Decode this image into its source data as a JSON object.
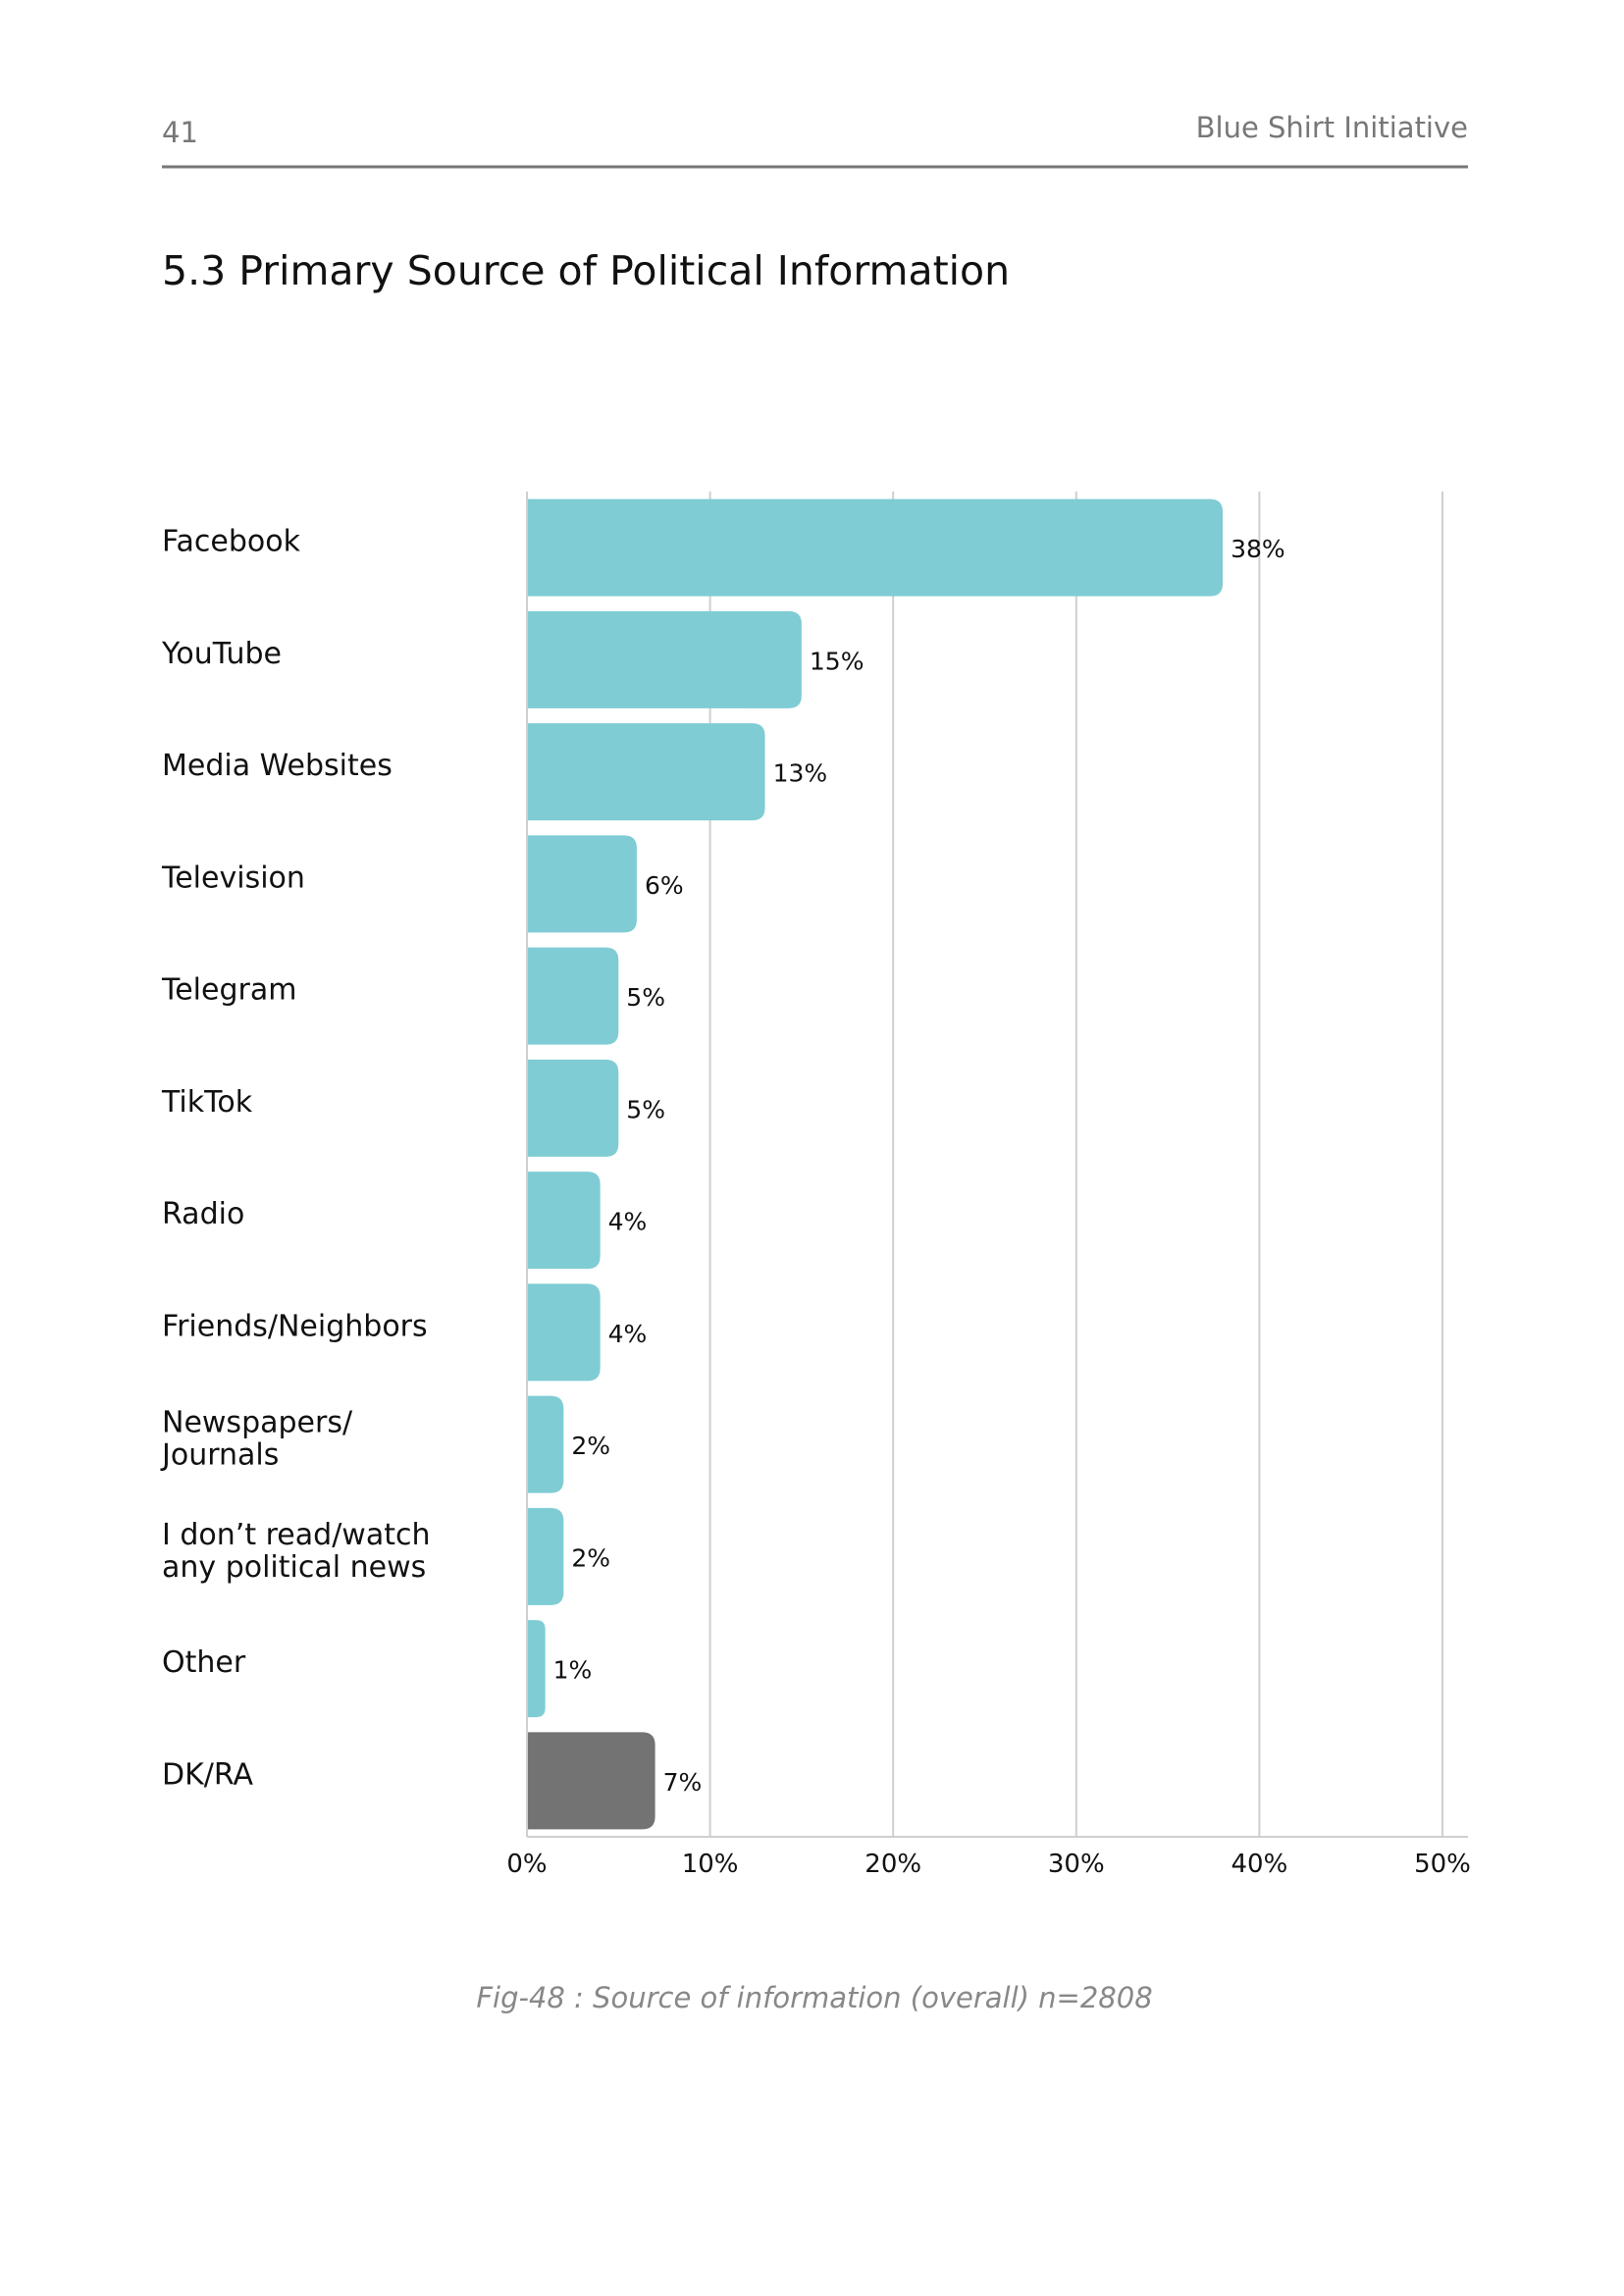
{
  "header": {
    "page_number": "41",
    "publication": "Blue Shirt Initiative"
  },
  "heading": "5.3 Primary Source of Political Information",
  "chart_data": {
    "type": "bar",
    "orientation": "horizontal",
    "categories": [
      "Facebook",
      "YouTube",
      "Media Websites",
      "Television",
      "Telegram",
      "TikTok",
      "Radio",
      "Friends/Neighbors",
      "Newspapers/\nJournals",
      "I don’t read/watch\nany political news",
      "Other",
      "DK/RA"
    ],
    "values": [
      38,
      15,
      13,
      6,
      5,
      5,
      4,
      4,
      2,
      2,
      1,
      7
    ],
    "value_labels": [
      "38%",
      "15%",
      "13%",
      "6%",
      "5%",
      "5%",
      "4%",
      "4%",
      "2%",
      "2%",
      "1%",
      "7%"
    ],
    "colors": [
      "#7fccd4",
      "#7fccd4",
      "#7fccd4",
      "#7fccd4",
      "#7fccd4",
      "#7fccd4",
      "#7fccd4",
      "#7fccd4",
      "#7fccd4",
      "#7fccd4",
      "#7fccd4",
      "#737373"
    ],
    "xlim": [
      0,
      50
    ],
    "xticks": [
      {
        "value": 0,
        "label": "0%"
      },
      {
        "value": 10,
        "label": "10%"
      },
      {
        "value": 20,
        "label": "20%"
      },
      {
        "value": 30,
        "label": "30%"
      },
      {
        "value": 40,
        "label": "40%"
      },
      {
        "value": 50,
        "label": "50%"
      }
    ],
    "grid": true
  },
  "caption": "Fig-48 : Source of information (overall) n=2808"
}
